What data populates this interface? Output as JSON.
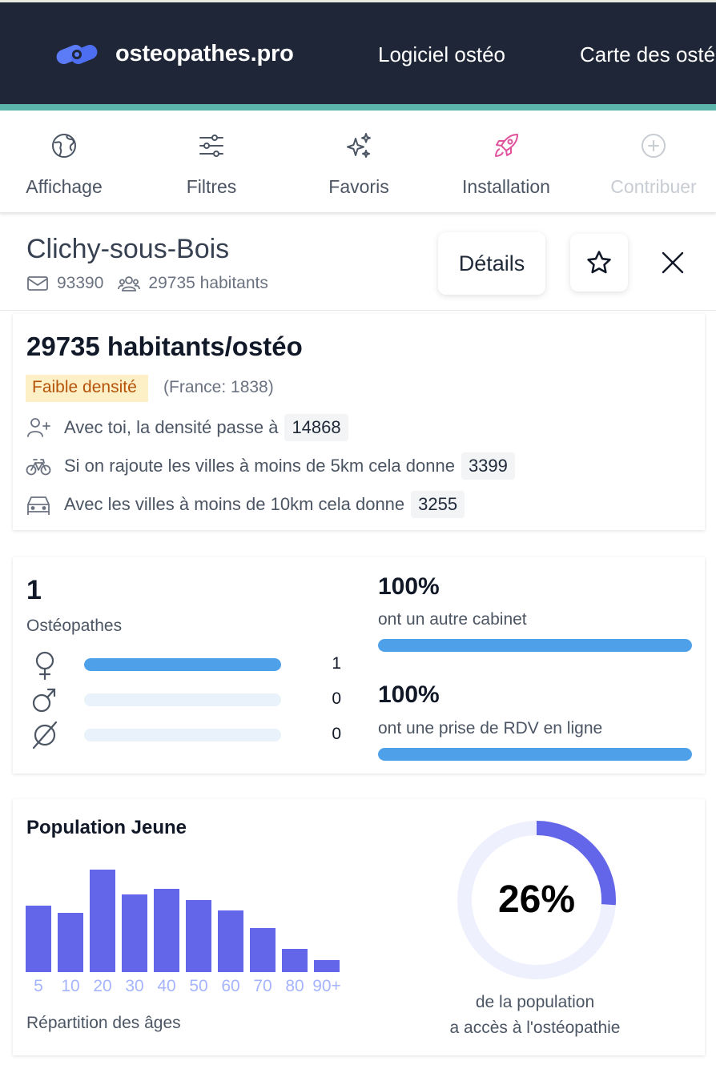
{
  "nav": {
    "brand": "osteopathes.pro",
    "links": [
      "Logiciel ostéo",
      "Carte des ostéo"
    ]
  },
  "toolbar": {
    "items": [
      {
        "label": "Affichage",
        "icon": "globe-icon",
        "enabled": true
      },
      {
        "label": "Filtres",
        "icon": "sliders-icon",
        "enabled": true
      },
      {
        "label": "Favoris",
        "icon": "sparkles-icon",
        "enabled": true
      },
      {
        "label": "Installation",
        "icon": "rocket-icon",
        "enabled": true
      },
      {
        "label": "Contribuer",
        "icon": "plus-circle-icon",
        "enabled": false
      }
    ]
  },
  "city": {
    "name": "Clichy-sous-Bois",
    "postal_code": "93390",
    "population": "29735 habitants",
    "details_label": "Détails"
  },
  "density": {
    "title": "29735 habitants/ostéo",
    "badge": "Faible densité",
    "france": "(France: 1838)",
    "rows": [
      {
        "icon": "user-plus-icon",
        "text": "Avec toi, la densité passe à",
        "value": "14868"
      },
      {
        "icon": "bike-icon",
        "text": "Si on rajoute les villes à moins de 5km cela donne",
        "value": "3399"
      },
      {
        "icon": "car-icon",
        "text": "Avec les villes à moins de 10km cela donne",
        "value": "3255"
      }
    ]
  },
  "osteo": {
    "count": "1",
    "label": "Ostéopathes",
    "genders": [
      {
        "icon": "female-icon",
        "count": "1",
        "fraction": 1.0
      },
      {
        "icon": "male-icon",
        "count": "0",
        "fraction": 0
      },
      {
        "icon": "unspecified-icon",
        "count": "0",
        "fraction": 0
      }
    ],
    "stats": [
      {
        "percent": "100%",
        "label": "ont un autre cabinet",
        "fraction": 1.0
      },
      {
        "percent": "100%",
        "label": "ont une prise de RDV en ligne",
        "fraction": 1.0
      }
    ]
  },
  "population": {
    "title": "Population Jeune",
    "caption": "Répartition des âges",
    "donut_percent": "26%",
    "donut_fraction": 0.26,
    "donut_caption_1": "de la population",
    "donut_caption_2": "a accès à l'ostéopathie"
  },
  "chart_data": {
    "type": "bar",
    "categories": [
      "5",
      "10",
      "20",
      "30",
      "40",
      "50",
      "60",
      "70",
      "80",
      "90+"
    ],
    "values": [
      83,
      74,
      128,
      97,
      104,
      90,
      77,
      55,
      29,
      15
    ],
    "color": "#6366e8",
    "label_color": "#a5b4fc"
  },
  "colors": {
    "nav_bg": "#1f2637",
    "accent": "#5cb5ab",
    "bar_blue": "#4ea1e8",
    "bar_track": "#e9f2fb",
    "indigo": "#6366e8",
    "donut_track": "#eef0fd",
    "rocket": "#e0529c"
  }
}
